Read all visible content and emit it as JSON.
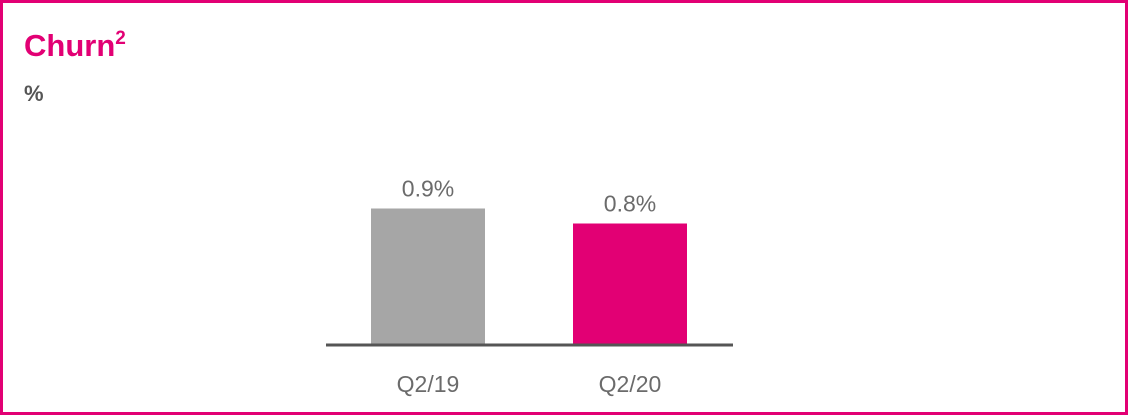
{
  "chart_data": {
    "type": "bar",
    "title": "Churn",
    "title_footnote": "2",
    "subtitle": "%",
    "categories": [
      "Q2/19",
      "Q2/20"
    ],
    "values": [
      0.9,
      0.8
    ],
    "value_labels": [
      "0.9%",
      "0.8%"
    ],
    "colors": [
      "#a6a6a6",
      "#e20074"
    ]
  }
}
